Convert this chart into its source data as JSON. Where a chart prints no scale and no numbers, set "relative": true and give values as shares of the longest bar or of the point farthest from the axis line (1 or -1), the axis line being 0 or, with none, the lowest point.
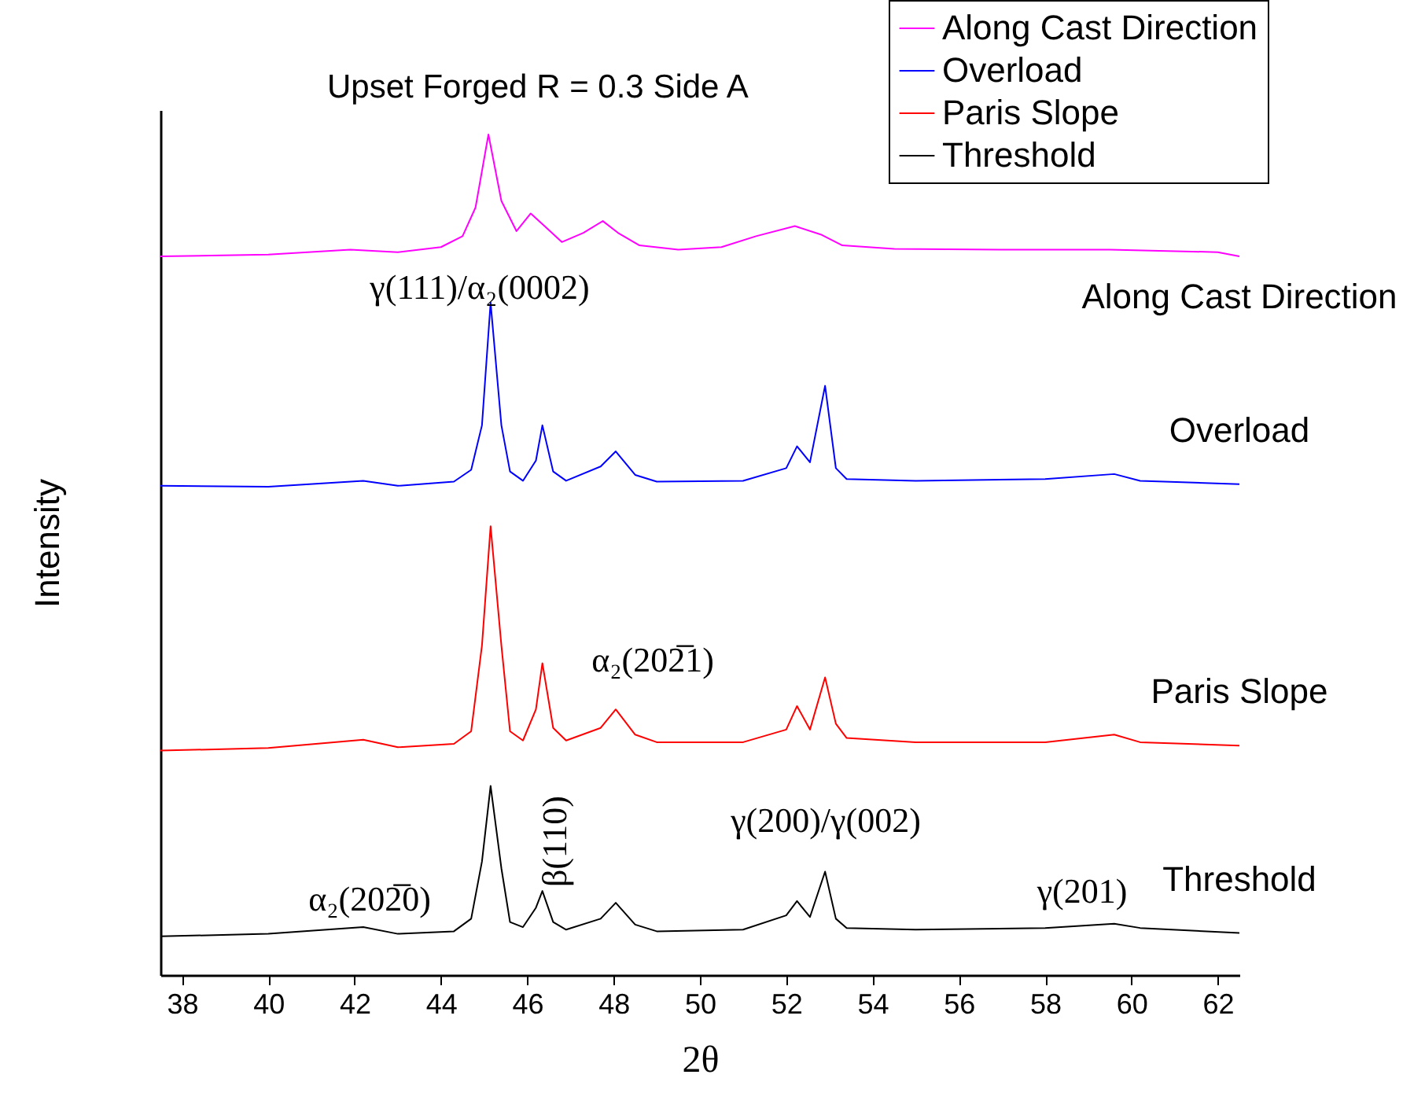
{
  "chart_data": {
    "type": "line",
    "title": "Upset Forged R = 0.3 Side A",
    "xlabel": "2θ",
    "ylabel": "Intensity",
    "relative": true,
    "grid": false,
    "legend": "top right",
    "xlim": [
      37.5,
      62.5
    ],
    "xticks": [
      38,
      40,
      42,
      44,
      46,
      48,
      50,
      52,
      54,
      56,
      58,
      60,
      62
    ],
    "x": [
      37.5,
      40,
      42.2,
      43,
      44.3,
      44.7,
      44.95,
      45.15,
      45.4,
      45.6,
      45.9,
      46.2,
      46.35,
      46.6,
      46.9,
      47.7,
      48.05,
      48.5,
      49,
      51,
      52.0,
      52.25,
      52.55,
      52.9,
      53.15,
      53.4,
      55,
      58,
      59.6,
      60.2,
      62.5
    ],
    "series": [
      {
        "name": "Along Cast Direction",
        "color": "#ff00ff",
        "x": [
          37.5,
          40,
          41.9,
          43,
          44,
          44.5,
          44.8,
          45.1,
          45.4,
          45.75,
          46.08,
          46.4,
          46.8,
          47.3,
          47.75,
          48.1,
          48.6,
          49.5,
          50.5,
          51.3,
          52.2,
          52.8,
          53.3,
          54.5,
          57,
          59.5,
          62,
          62.5
        ],
        "values": [
          0.855,
          0.857,
          0.863,
          0.86,
          0.866,
          0.879,
          0.913,
          1.0,
          0.921,
          0.885,
          0.906,
          0.891,
          0.872,
          0.883,
          0.897,
          0.883,
          0.868,
          0.863,
          0.866,
          0.879,
          0.891,
          0.881,
          0.868,
          0.864,
          0.863,
          0.863,
          0.86,
          0.855
        ]
      },
      {
        "name": "Overload",
        "color": "#0000ff",
        "values": [
          0.582,
          0.581,
          0.588,
          0.582,
          0.587,
          0.601,
          0.654,
          0.8,
          0.654,
          0.599,
          0.588,
          0.612,
          0.654,
          0.599,
          0.588,
          0.605,
          0.623,
          0.595,
          0.587,
          0.588,
          0.603,
          0.629,
          0.61,
          0.701,
          0.603,
          0.59,
          0.588,
          0.59,
          0.596,
          0.588,
          0.584
        ]
      },
      {
        "name": "Paris Slope",
        "color": "#ff0000",
        "values": [
          0.267,
          0.27,
          0.28,
          0.271,
          0.275,
          0.29,
          0.392,
          0.534,
          0.392,
          0.29,
          0.279,
          0.316,
          0.371,
          0.294,
          0.279,
          0.294,
          0.316,
          0.286,
          0.277,
          0.277,
          0.292,
          0.32,
          0.292,
          0.354,
          0.299,
          0.282,
          0.277,
          0.277,
          0.286,
          0.277,
          0.273
        ]
      },
      {
        "name": "Threshold",
        "color": "#000000",
        "values": [
          0.046,
          0.049,
          0.057,
          0.049,
          0.052,
          0.067,
          0.135,
          0.225,
          0.127,
          0.063,
          0.057,
          0.08,
          0.1,
          0.063,
          0.054,
          0.067,
          0.086,
          0.06,
          0.052,
          0.054,
          0.071,
          0.088,
          0.069,
          0.123,
          0.067,
          0.056,
          0.054,
          0.056,
          0.061,
          0.056,
          0.05
        ]
      }
    ],
    "annotations": [
      "γ(111)/α₂(0002)",
      "α₂(202̅1)",
      "β(110)",
      "α₂(202̅0)",
      "γ(200)/γ(002)",
      "γ(201)"
    ]
  }
}
